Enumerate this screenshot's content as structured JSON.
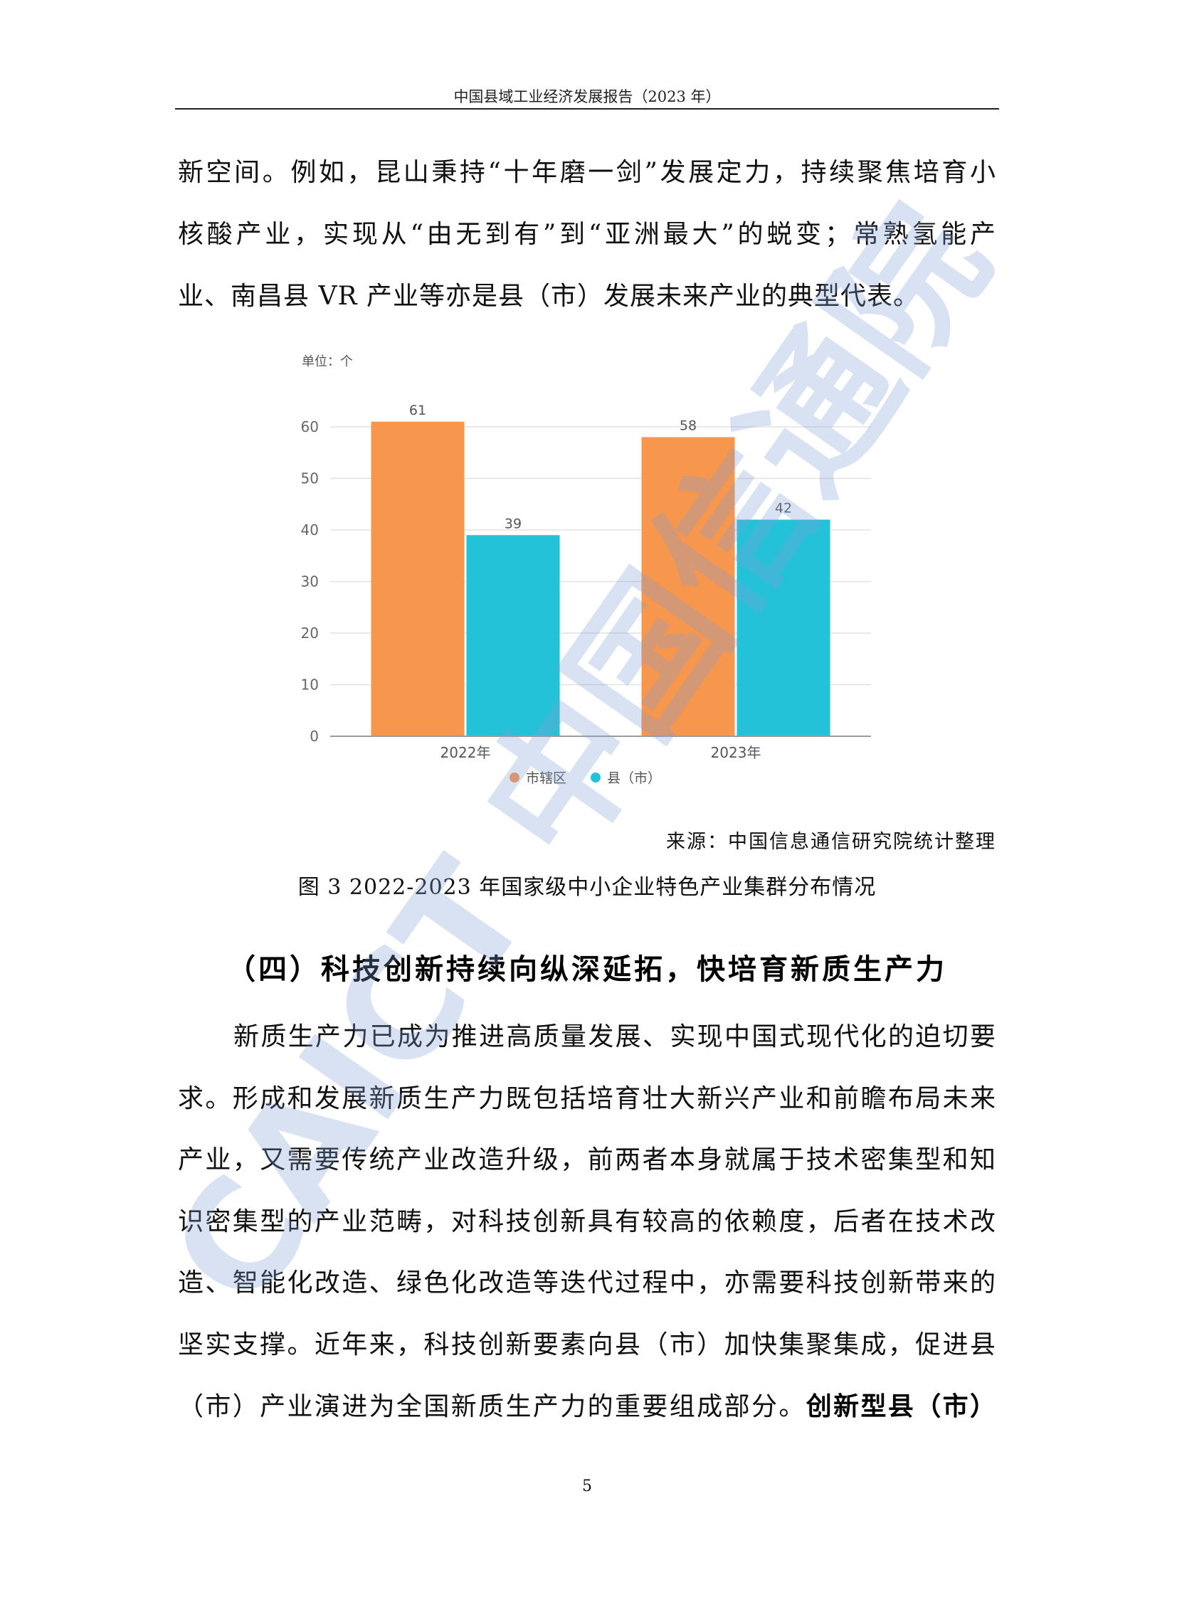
{
  "header": {
    "title": "中国县域工业经济发展报告（2023 年）"
  },
  "paragraph1": {
    "lines": [
      "新空间。例如，昆山秉持“十年磨一剑”发展定力，持续聚焦培育小",
      "核酸产业，实现从“由无到有”到“亚洲最大”的蜕变；常熟氢能产",
      "业、南昌县 VR 产业等亦是县（市）发展未来产业的典型代表。"
    ]
  },
  "figure": {
    "source": "来源：中国信息通信研究院统计整理",
    "caption": "图 3 2022-2023 年国家级中小企业特色产业集群分布情况"
  },
  "section_heading": "（四）科技创新持续向纵深延拓，快培育新质生产力",
  "paragraph2": {
    "lines": [
      "新质生产力已成为推进高质量发展、实现中国式现代化的迫切要",
      "求。形成和发展新质生产力既包括培育壮大新兴产业和前瞻布局未来",
      "产业，又需要传统产业改造升级，前两者本身就属于技术密集型和知",
      "识密集型的产业范畴，对科技创新具有较高的依赖度，后者在技术改",
      "造、智能化改造、绿色化改造等迭代过程中，亦需要科技创新带来的",
      "坚实支撑。近年来，科技创新要素向县（市）加快集聚集成，促进县"
    ],
    "last_line_normal": "（市）产业演进为全国新质生产力的重要组成部分。",
    "last_line_bold": "创新型县（市）"
  },
  "page_number": "5",
  "watermark": {
    "latin": "CAICT",
    "chinese": "中国信通院",
    "color": "#7f9fd4"
  },
  "chart_data": {
    "type": "bar",
    "unit_label": "单位：个",
    "categories": [
      "2022年",
      "2023年"
    ],
    "series": [
      {
        "name": "市辖区",
        "color": "#f7964d",
        "values": [
          61,
          58
        ]
      },
      {
        "name": "县（市）",
        "color": "#24c2d8",
        "values": [
          39,
          42
        ]
      }
    ],
    "y_ticks": [
      0,
      10,
      20,
      30,
      40,
      50,
      60
    ],
    "ylim": [
      0,
      60
    ],
    "grid": true,
    "legend": "bottom"
  }
}
